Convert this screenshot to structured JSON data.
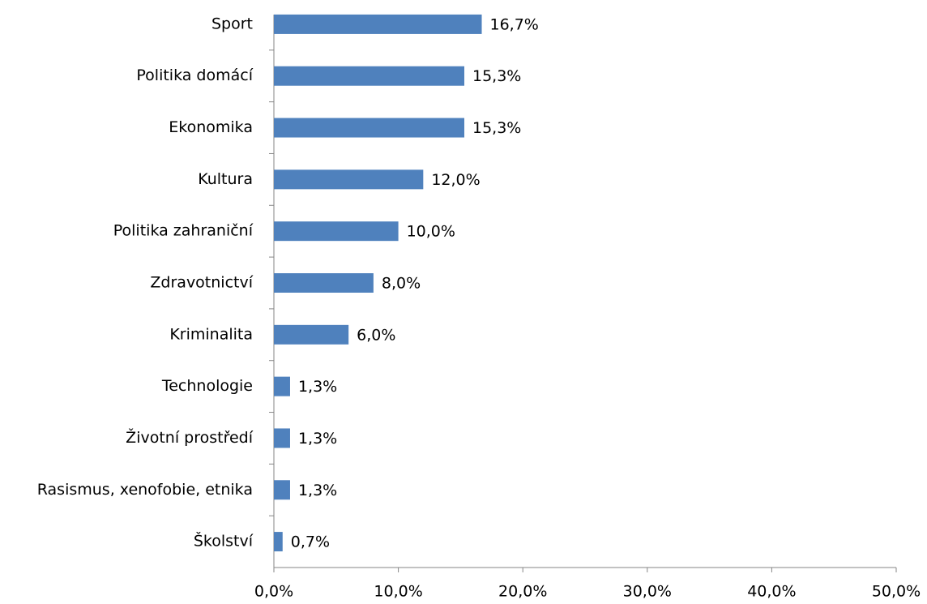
{
  "chart_data": {
    "type": "barh",
    "categories": [
      "Sport",
      "Politika domácí",
      "Ekonomika",
      "Kultura",
      "Politika zahraniční",
      "Zdravotnictví",
      "Kriminalita",
      "Technologie",
      "Životní prostředí",
      "Rasismus, xenofobie, etnika",
      "Školství"
    ],
    "values": [
      16.7,
      15.3,
      15.3,
      12.0,
      10.0,
      8.0,
      6.0,
      1.3,
      1.3,
      1.3,
      0.7
    ],
    "value_labels": [
      "16,7%",
      "15,3%",
      "15,3%",
      "12,0%",
      "10,0%",
      "8,0%",
      "6,0%",
      "1,3%",
      "1,3%",
      "1,3%",
      "0,7%"
    ],
    "color": "#4f81bd",
    "xlim": [
      0,
      50
    ],
    "xticks": [
      {
        "value": 0,
        "label": "0,0%"
      },
      {
        "value": 10,
        "label": "10,0%"
      },
      {
        "value": 20,
        "label": "20,0%"
      },
      {
        "value": 30,
        "label": "30,0%"
      },
      {
        "value": 40,
        "label": "40,0%"
      },
      {
        "value": 50,
        "label": "50,0%"
      }
    ],
    "grid": false
  }
}
